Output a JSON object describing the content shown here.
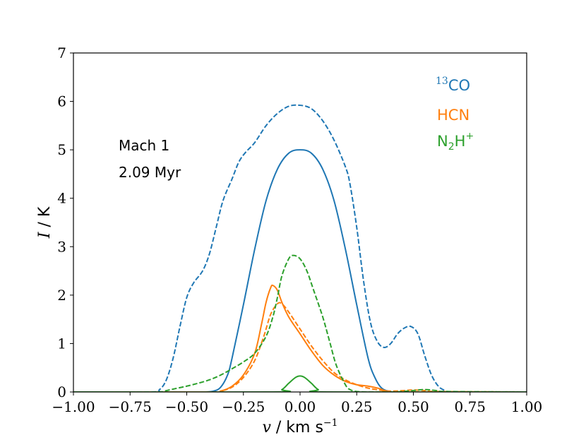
{
  "chart_data": {
    "type": "line",
    "title": "",
    "xlabel": {
      "symbol": "v",
      "unit": "km s",
      "unit_exp": "−1",
      "sep": " / "
    },
    "ylabel": {
      "symbol": "I",
      "unit": "K",
      "sep": " / "
    },
    "xlim": [
      -1.0,
      1.0
    ],
    "ylim": [
      0,
      7
    ],
    "xticks": [
      -1.0,
      -0.75,
      -0.5,
      -0.25,
      0.0,
      0.25,
      0.5,
      0.75,
      1.0
    ],
    "xtick_labels": [
      "−1.00",
      "−0.75",
      "−0.50",
      "−0.25",
      "0.00",
      "0.25",
      "0.50",
      "0.75",
      "1.00"
    ],
    "yticks": [
      0,
      1,
      2,
      3,
      4,
      5,
      6,
      7
    ],
    "ytick_labels": [
      "0",
      "1",
      "2",
      "3",
      "4",
      "5",
      "6",
      "7"
    ],
    "grid": false,
    "legend_position": "top-right",
    "annotations": [
      "Mach 1",
      "2.09 Myr"
    ],
    "colors": {
      "co13": "#1f77b4",
      "hcn": "#ff7f0e",
      "n2h": "#2ca02c"
    },
    "legend": [
      {
        "name": "13CO",
        "sup": "13",
        "base": "CO",
        "color": "#1f77b4"
      },
      {
        "name": "HCN",
        "base": "HCN",
        "color": "#ff7f0e"
      },
      {
        "name": "N2H+",
        "base": "N",
        "sub": "2",
        "base2": "H",
        "sup": "+",
        "color": "#2ca02c"
      }
    ],
    "series": [
      {
        "name": "13CO solid",
        "color": "#1f77b4",
        "style": "solid",
        "x": [
          -1.0,
          -0.5,
          -0.42,
          -0.38,
          -0.35,
          -0.32,
          -0.3,
          -0.25,
          -0.2,
          -0.15,
          -0.1,
          -0.05,
          0.0,
          0.05,
          0.1,
          0.15,
          0.2,
          0.25,
          0.3,
          0.33,
          0.36,
          0.4,
          0.45,
          1.0
        ],
        "y": [
          0,
          0,
          0,
          0.02,
          0.1,
          0.35,
          0.7,
          1.8,
          2.95,
          3.95,
          4.6,
          4.93,
          5.0,
          4.93,
          4.6,
          3.95,
          2.95,
          1.8,
          0.7,
          0.3,
          0.08,
          0.01,
          0,
          0
        ]
      },
      {
        "name": "13CO dashed",
        "color": "#1f77b4",
        "style": "dashed",
        "x": [
          -1.0,
          -0.66,
          -0.62,
          -0.59,
          -0.56,
          -0.53,
          -0.5,
          -0.47,
          -0.43,
          -0.4,
          -0.37,
          -0.34,
          -0.3,
          -0.27,
          -0.24,
          -0.2,
          -0.15,
          -0.1,
          -0.05,
          0.0,
          0.05,
          0.1,
          0.15,
          0.2,
          0.22,
          0.25,
          0.28,
          0.31,
          0.34,
          0.37,
          0.4,
          0.43,
          0.46,
          0.49,
          0.52,
          0.55,
          0.58,
          0.61,
          0.64,
          0.67,
          1.0
        ],
        "y": [
          0,
          0,
          0.05,
          0.25,
          0.7,
          1.35,
          1.95,
          2.25,
          2.5,
          2.85,
          3.4,
          3.95,
          4.4,
          4.75,
          4.95,
          5.15,
          5.5,
          5.75,
          5.9,
          5.92,
          5.85,
          5.6,
          5.2,
          4.65,
          4.3,
          3.4,
          2.3,
          1.45,
          1.05,
          0.92,
          1.0,
          1.2,
          1.32,
          1.35,
          1.2,
          0.75,
          0.35,
          0.12,
          0.03,
          0,
          0
        ]
      },
      {
        "name": "HCN solid",
        "color": "#ff7f0e",
        "style": "solid",
        "x": [
          -1.0,
          -0.4,
          -0.35,
          -0.3,
          -0.25,
          -0.2,
          -0.17,
          -0.15,
          -0.13,
          -0.12,
          -0.1,
          -0.08,
          -0.05,
          0.0,
          0.05,
          0.1,
          0.15,
          0.2,
          0.25,
          0.3,
          0.35,
          0.38,
          0.42,
          1.0
        ],
        "y": [
          0,
          0,
          0.02,
          0.12,
          0.35,
          0.8,
          1.4,
          1.85,
          2.15,
          2.2,
          2.1,
          1.85,
          1.55,
          1.2,
          0.85,
          0.55,
          0.35,
          0.22,
          0.15,
          0.12,
          0.07,
          0.02,
          0,
          0
        ]
      },
      {
        "name": "HCN dashed",
        "color": "#ff7f0e",
        "style": "dashed",
        "x": [
          -1.0,
          -0.4,
          -0.35,
          -0.3,
          -0.25,
          -0.2,
          -0.16,
          -0.13,
          -0.1,
          -0.08,
          -0.05,
          0.0,
          0.05,
          0.1,
          0.15,
          0.2,
          0.25,
          0.3,
          0.35,
          0.38,
          0.42,
          0.46,
          0.5,
          0.55,
          0.6,
          1.0
        ],
        "y": [
          0,
          0,
          0.02,
          0.1,
          0.3,
          0.65,
          1.15,
          1.6,
          1.82,
          1.82,
          1.65,
          1.3,
          0.95,
          0.65,
          0.4,
          0.25,
          0.15,
          0.08,
          0.04,
          0.02,
          0.02,
          0.03,
          0.04,
          0.03,
          0.01,
          0
        ]
      },
      {
        "name": "N2H+ solid",
        "color": "#2ca02c",
        "style": "solid",
        "x": [
          -1.0,
          -0.12,
          -0.08,
          -0.05,
          -0.02,
          0.0,
          0.02,
          0.05,
          0.08,
          0.12,
          1.0
        ],
        "y": [
          0,
          0,
          0.05,
          0.18,
          0.3,
          0.33,
          0.3,
          0.18,
          0.05,
          0,
          0
        ]
      },
      {
        "name": "N2H+ dashed",
        "color": "#2ca02c",
        "style": "dashed",
        "x": [
          -1.0,
          -0.65,
          -0.6,
          -0.55,
          -0.5,
          -0.45,
          -0.4,
          -0.35,
          -0.3,
          -0.25,
          -0.2,
          -0.15,
          -0.12,
          -0.1,
          -0.08,
          -0.05,
          -0.03,
          0.0,
          0.03,
          0.06,
          0.1,
          0.13,
          0.16,
          0.2,
          0.22,
          0.25,
          0.3,
          0.35,
          0.4,
          0.45,
          0.5,
          0.55,
          0.6,
          0.65,
          1.0
        ],
        "y": [
          0,
          0,
          0.02,
          0.07,
          0.12,
          0.18,
          0.25,
          0.35,
          0.48,
          0.62,
          0.8,
          1.15,
          1.55,
          1.95,
          2.4,
          2.75,
          2.82,
          2.75,
          2.5,
          2.1,
          1.55,
          1.05,
          0.55,
          0.15,
          0.05,
          0.01,
          0,
          0,
          0,
          0.01,
          0.03,
          0.05,
          0.03,
          0.01,
          0
        ]
      }
    ]
  }
}
